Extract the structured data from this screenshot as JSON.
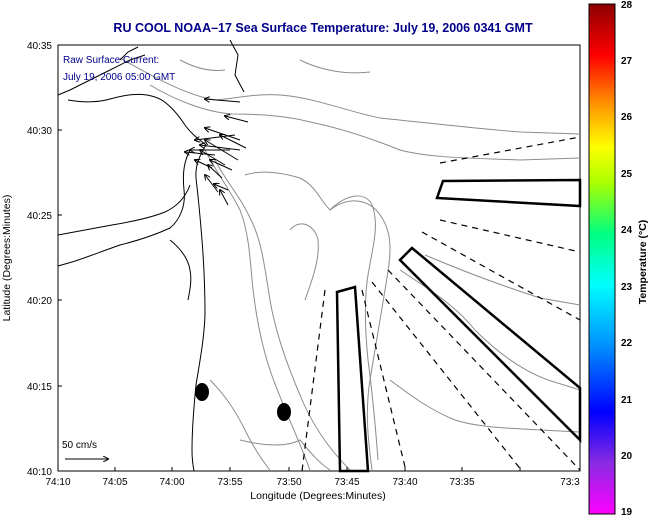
{
  "title": "RU COOL  NOAA–17  Sea Surface Temperature:  July 19, 2006 0341 GMT",
  "subtitle_line1": "Raw Surface Current:",
  "subtitle_line2": "July 19, 2006 05:00 GMT",
  "xlabel": "Longitude (Degrees:Minutes)",
  "ylabel": "Latitude (Degrees:Minutes)",
  "x_ticks": [
    "74:10",
    "74:05",
    "74:00",
    "73:55",
    "73:50",
    "73:45",
    "73:40",
    "73:35",
    "73:3"
  ],
  "y_ticks": [
    "40:35",
    "40:30",
    "40:25",
    "40:20",
    "40:15",
    "40:10"
  ],
  "scale_label": "50 cm/s",
  "colorbar": {
    "label": "Temperature (°C)",
    "ticks": [
      "28",
      "27",
      "26",
      "25",
      "24",
      "23",
      "22",
      "21",
      "20",
      "19"
    ],
    "min": 19,
    "max": 28
  },
  "colors": {
    "text_blue": "#00008b",
    "contour": "#8c8c8c",
    "coast": "#000000"
  }
}
